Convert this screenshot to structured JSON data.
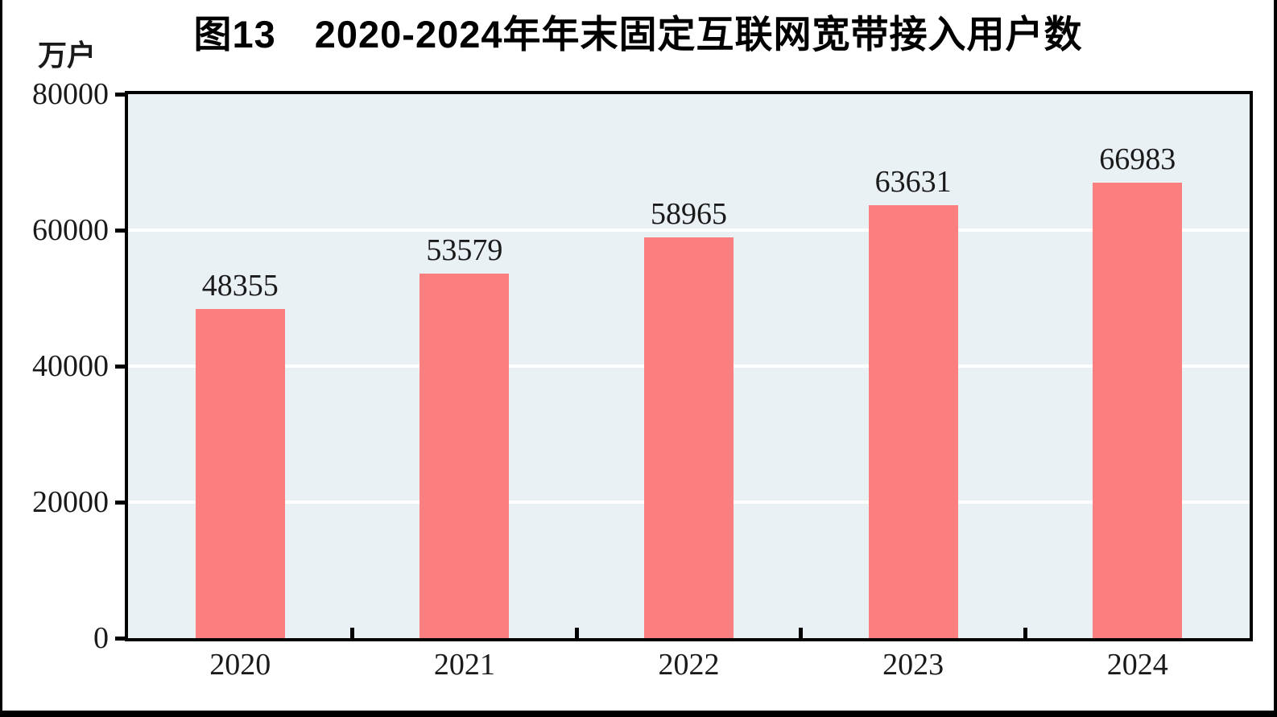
{
  "chart_data": {
    "type": "bar",
    "title": "图13　2020-2024年年末固定互联网宽带接入用户数",
    "unit_label": "万户",
    "categories": [
      "2020",
      "2021",
      "2022",
      "2023",
      "2024"
    ],
    "values": [
      48355,
      53579,
      58965,
      63631,
      66983
    ],
    "value_labels": [
      "48355",
      "53579",
      "58965",
      "63631",
      "66983"
    ],
    "xlabel": "",
    "ylabel": "万户",
    "ylim": [
      0,
      80000
    ],
    "yticks": [
      0,
      20000,
      40000,
      60000,
      80000
    ],
    "ytick_labels": [
      "0",
      "20000",
      "40000",
      "60000",
      "80000"
    ],
    "grid": "horizontal-white-lines",
    "legend_position": "none",
    "bar_color": "#FC7F7F",
    "plot_bg_color": "#EAF1F5",
    "axis_color": "#000000",
    "title_color": "#000000"
  }
}
